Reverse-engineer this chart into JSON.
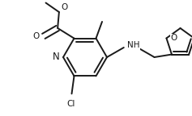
{
  "bg_color": "#ffffff",
  "line_color": "#1a1a1a",
  "line_width": 1.4,
  "font_size": 7.5,
  "figsize": [
    2.37,
    1.44
  ],
  "dpi": 100,
  "xlim": [
    0.0,
    2.37
  ],
  "ylim": [
    0.0,
    1.44
  ]
}
